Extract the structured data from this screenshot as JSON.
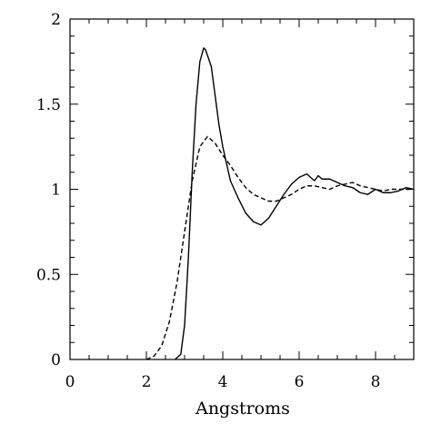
{
  "chart_data": {
    "type": "line",
    "title": "",
    "xlabel": "Angstroms",
    "ylabel": "",
    "xlim": [
      0,
      9
    ],
    "ylim": [
      0,
      2
    ],
    "grid": false,
    "legend": "none",
    "x_ticks": [
      0,
      2,
      4,
      6,
      8
    ],
    "x_tick_labels": [
      "0",
      "2",
      "4",
      "6",
      "8"
    ],
    "y_ticks": [
      0,
      0.5,
      1,
      1.5,
      2
    ],
    "y_tick_labels": [
      "0",
      "0.5",
      "1",
      "1.5",
      "2"
    ],
    "series": [
      {
        "style": "solid",
        "color": "#000000",
        "x": [
          2.75,
          2.9,
          3.0,
          3.1,
          3.2,
          3.3,
          3.4,
          3.5,
          3.55,
          3.7,
          3.8,
          3.9,
          4.0,
          4.2,
          4.4,
          4.6,
          4.8,
          5.0,
          5.2,
          5.4,
          5.6,
          5.8,
          6.0,
          6.2,
          6.4,
          6.5,
          6.6,
          6.8,
          7.0,
          7.2,
          7.4,
          7.6,
          7.8,
          8.0,
          8.2,
          8.4,
          8.6,
          8.8,
          9.0
        ],
        "y": [
          0.0,
          0.03,
          0.2,
          0.6,
          1.1,
          1.5,
          1.75,
          1.83,
          1.82,
          1.72,
          1.55,
          1.38,
          1.25,
          1.05,
          0.95,
          0.86,
          0.81,
          0.79,
          0.83,
          0.9,
          0.97,
          1.03,
          1.07,
          1.09,
          1.05,
          1.08,
          1.06,
          1.06,
          1.04,
          1.02,
          1.01,
          0.98,
          0.97,
          1.0,
          0.98,
          0.98,
          0.99,
          1.01,
          1.0
        ]
      },
      {
        "style": "dashed",
        "color": "#000000",
        "x": [
          2.0,
          2.2,
          2.4,
          2.6,
          2.8,
          3.0,
          3.2,
          3.4,
          3.6,
          3.8,
          4.0,
          4.2,
          4.4,
          4.6,
          4.8,
          5.0,
          5.2,
          5.4,
          5.6,
          5.8,
          6.0,
          6.2,
          6.4,
          6.6,
          6.8,
          7.0,
          7.2,
          7.4,
          7.6,
          7.8,
          8.0,
          8.2,
          8.4,
          8.6,
          8.8,
          9.0
        ],
        "y": [
          0.0,
          0.02,
          0.08,
          0.22,
          0.45,
          0.75,
          1.05,
          1.25,
          1.31,
          1.27,
          1.2,
          1.14,
          1.07,
          1.01,
          0.97,
          0.95,
          0.93,
          0.93,
          0.95,
          0.97,
          1.0,
          1.02,
          1.02,
          1.01,
          1.0,
          1.02,
          1.03,
          1.04,
          1.02,
          1.01,
          1.0,
          0.99,
          1.0,
          1.0,
          1.0,
          1.0
        ]
      }
    ]
  }
}
